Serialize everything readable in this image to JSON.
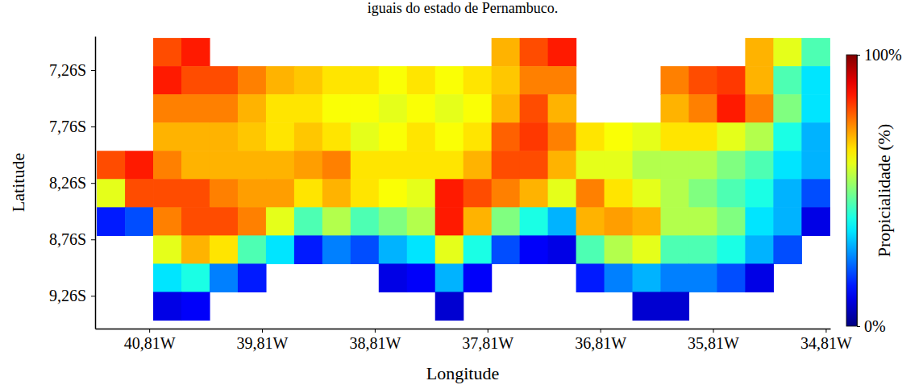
{
  "chart_data": {
    "type": "heatmap",
    "title": "iguais do estado de Pernambuco.",
    "xlabel": "Longitude",
    "ylabel": "Latitude",
    "grid": false,
    "xlim": [
      -41.29,
      -34.77
    ],
    "ylim": [
      -9.55,
      -6.96
    ],
    "xticks": [
      {
        "value": -40.81,
        "label": "40,81W"
      },
      {
        "value": -39.81,
        "label": "39,81W"
      },
      {
        "value": -38.81,
        "label": "38,81W"
      },
      {
        "value": -37.81,
        "label": "37,81W"
      },
      {
        "value": -36.81,
        "label": "36,81W"
      },
      {
        "value": -35.81,
        "label": "35,81W"
      },
      {
        "value": -34.81,
        "label": "34,81W"
      }
    ],
    "yticks": [
      {
        "value": -7.26,
        "label": "7,26S"
      },
      {
        "value": -7.76,
        "label": "7,76S"
      },
      {
        "value": -8.26,
        "label": "8,26S"
      },
      {
        "value": -8.76,
        "label": "8,76S"
      },
      {
        "value": -9.26,
        "label": "9,26S"
      }
    ],
    "x": [
      -41.15,
      -40.9,
      -40.65,
      -40.4,
      -40.15,
      -39.9,
      -39.65,
      -39.4,
      -39.15,
      -38.9,
      -38.65,
      -38.4,
      -38.15,
      -37.9,
      -37.65,
      -37.4,
      -37.15,
      -36.9,
      -36.65,
      -36.4,
      -36.15,
      -35.9,
      -35.65,
      -35.4,
      -35.15,
      -34.9
    ],
    "y": [
      -7.1,
      -7.35,
      -7.6,
      -7.85,
      -8.1,
      -8.35,
      -8.6,
      -8.85,
      -9.1,
      -9.35
    ],
    "values": [
      [
        null,
        null,
        80,
        85,
        null,
        null,
        null,
        null,
        null,
        null,
        null,
        null,
        null,
        null,
        70,
        80,
        85,
        null,
        null,
        null,
        null,
        null,
        null,
        70,
        60,
        45
      ],
      [
        null,
        null,
        85,
        80,
        80,
        75,
        70,
        68,
        65,
        65,
        62,
        65,
        62,
        65,
        68,
        75,
        75,
        null,
        null,
        null,
        75,
        80,
        82,
        70,
        45,
        35
      ],
      [
        null,
        null,
        75,
        75,
        75,
        70,
        65,
        65,
        62,
        62,
        60,
        62,
        60,
        62,
        70,
        80,
        70,
        null,
        null,
        null,
        70,
        75,
        85,
        75,
        50,
        35
      ],
      [
        null,
        null,
        70,
        70,
        70,
        68,
        65,
        68,
        65,
        60,
        62,
        65,
        62,
        65,
        78,
        82,
        75,
        65,
        62,
        60,
        65,
        65,
        60,
        55,
        40,
        30
      ],
      [
        80,
        85,
        75,
        70,
        70,
        70,
        70,
        72,
        75,
        65,
        65,
        65,
        65,
        70,
        80,
        80,
        70,
        60,
        60,
        55,
        55,
        55,
        50,
        45,
        35,
        30
      ],
      [
        60,
        80,
        80,
        80,
        75,
        72,
        72,
        65,
        70,
        65,
        62,
        60,
        85,
        80,
        75,
        70,
        60,
        75,
        65,
        60,
        55,
        50,
        45,
        40,
        30,
        20
      ],
      [
        15,
        20,
        75,
        80,
        80,
        75,
        60,
        45,
        55,
        45,
        50,
        55,
        85,
        70,
        50,
        40,
        30,
        70,
        72,
        70,
        55,
        55,
        50,
        35,
        30,
        10
      ],
      [
        null,
        null,
        60,
        70,
        65,
        45,
        35,
        15,
        25,
        20,
        30,
        35,
        60,
        40,
        20,
        12,
        10,
        45,
        55,
        60,
        45,
        45,
        40,
        30,
        20,
        null
      ],
      [
        null,
        null,
        35,
        40,
        25,
        15,
        null,
        null,
        null,
        null,
        10,
        12,
        30,
        12,
        null,
        null,
        null,
        15,
        25,
        30,
        25,
        25,
        20,
        10,
        null,
        null
      ],
      [
        null,
        null,
        10,
        12,
        null,
        null,
        null,
        null,
        null,
        null,
        null,
        null,
        8,
        null,
        null,
        null,
        null,
        null,
        null,
        8,
        8,
        null,
        null,
        null,
        null,
        null
      ]
    ],
    "colorbar": {
      "label": "Propicialidade (%)",
      "range": [
        0,
        100
      ],
      "ticks": [
        {
          "value": 0,
          "label": "0%"
        },
        {
          "value": 100,
          "label": "100%"
        }
      ]
    }
  }
}
